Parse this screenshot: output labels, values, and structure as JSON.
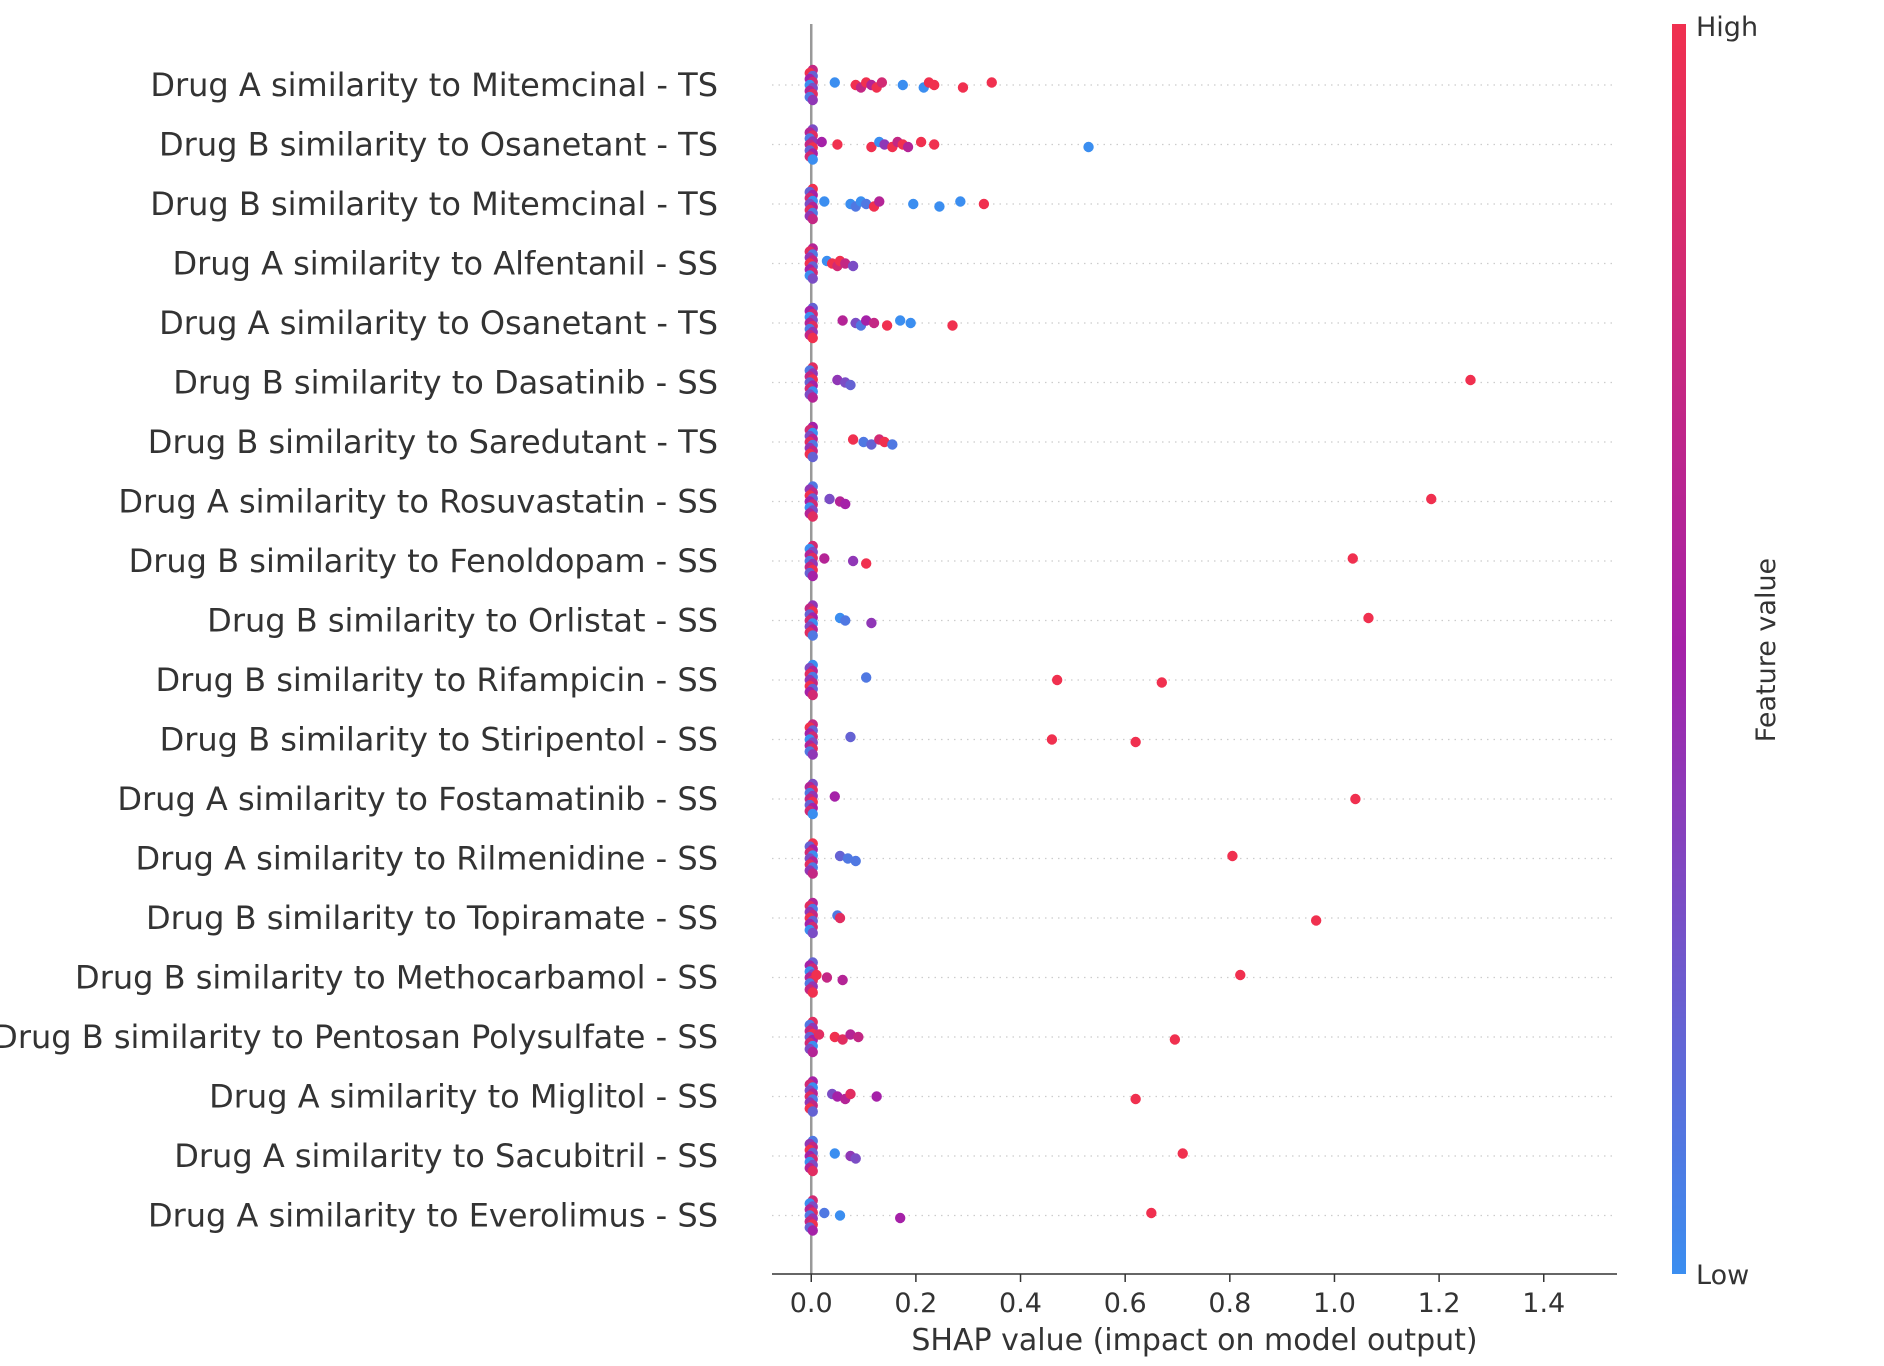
{
  "chart_data": {
    "type": "scatter",
    "title": "",
    "xlabel": "SHAP value (impact on model output)",
    "ylabel": "",
    "xlim": [
      -0.075,
      1.54
    ],
    "xticks": [
      0.0,
      0.2,
      0.4,
      0.6,
      0.8,
      1.0,
      1.2,
      1.4
    ],
    "xtick_labels": [
      "0.0",
      "0.2",
      "0.4",
      "0.6",
      "0.8",
      "1.0",
      "1.2",
      "1.4"
    ],
    "grid": false,
    "colorbar": {
      "label": "Feature value",
      "high": "High",
      "low": "Low",
      "low_color": "#3b8ef0",
      "high_color": "#f0304f"
    },
    "features": [
      {
        "name": "Drug A similarity to Mitemcinal - TS",
        "points": [
          [
            0.045,
            0
          ],
          [
            0.085,
            1
          ],
          [
            0.095,
            0.7
          ],
          [
            0.105,
            1
          ],
          [
            0.115,
            0.6
          ],
          [
            0.125,
            1
          ],
          [
            0.135,
            0.8
          ],
          [
            0.175,
            0
          ],
          [
            0.215,
            0
          ],
          [
            0.225,
            1
          ],
          [
            0.235,
            1
          ],
          [
            0.29,
            1
          ],
          [
            0.345,
            1
          ]
        ]
      },
      {
        "name": "Drug B similarity to Osanetant - TS",
        "points": [
          [
            0.02,
            0.5
          ],
          [
            0.05,
            1
          ],
          [
            0.115,
            1
          ],
          [
            0.13,
            0
          ],
          [
            0.14,
            0.4
          ],
          [
            0.155,
            1
          ],
          [
            0.165,
            0.7
          ],
          [
            0.175,
            1
          ],
          [
            0.185,
            0.6
          ],
          [
            0.21,
            1
          ],
          [
            0.235,
            1
          ],
          [
            0.53,
            0
          ]
        ]
      },
      {
        "name": "Drug B similarity to Mitemcinal - TS",
        "points": [
          [
            0.025,
            0
          ],
          [
            0.075,
            0
          ],
          [
            0.085,
            0.1
          ],
          [
            0.095,
            0
          ],
          [
            0.105,
            0.1
          ],
          [
            0.12,
            1
          ],
          [
            0.13,
            0.6
          ],
          [
            0.195,
            0
          ],
          [
            0.245,
            0
          ],
          [
            0.285,
            0
          ],
          [
            0.33,
            1
          ]
        ]
      },
      {
        "name": "Drug A similarity to Alfentanil - SS",
        "points": [
          [
            0.03,
            0
          ],
          [
            0.04,
            1
          ],
          [
            0.05,
            0.8
          ],
          [
            0.055,
            1
          ],
          [
            0.065,
            0.7
          ],
          [
            0.08,
            0.3
          ]
        ]
      },
      {
        "name": "Drug A similarity to Osanetant - TS",
        "points": [
          [
            0.06,
            0.6
          ],
          [
            0.085,
            0.3
          ],
          [
            0.095,
            0.1
          ],
          [
            0.105,
            0.5
          ],
          [
            0.12,
            0.7
          ],
          [
            0.145,
            1
          ],
          [
            0.17,
            0
          ],
          [
            0.19,
            0
          ],
          [
            0.27,
            1
          ]
        ]
      },
      {
        "name": "Drug B similarity to Dasatinib - SS",
        "points": [
          [
            0.05,
            0.4
          ],
          [
            0.065,
            0.3
          ],
          [
            0.075,
            0.2
          ],
          [
            1.26,
            1
          ]
        ]
      },
      {
        "name": "Drug B similarity to Saredutant - TS",
        "points": [
          [
            0.08,
            1
          ],
          [
            0.1,
            0.1
          ],
          [
            0.115,
            0.2
          ],
          [
            0.13,
            0.8
          ],
          [
            0.14,
            1
          ],
          [
            0.155,
            0.1
          ]
        ]
      },
      {
        "name": "Drug A similarity to Rosuvastatin - SS",
        "points": [
          [
            0.035,
            0.3
          ],
          [
            0.055,
            0.6
          ],
          [
            0.065,
            0.5
          ],
          [
            1.185,
            1
          ]
        ]
      },
      {
        "name": "Drug B similarity to Fenoldopam - SS",
        "points": [
          [
            0.025,
            0.6
          ],
          [
            0.08,
            0.4
          ],
          [
            0.105,
            1
          ],
          [
            1.035,
            1
          ]
        ]
      },
      {
        "name": "Drug B similarity to Orlistat - SS",
        "points": [
          [
            0.055,
            0
          ],
          [
            0.065,
            0.1
          ],
          [
            0.115,
            0.4
          ],
          [
            1.065,
            1
          ]
        ]
      },
      {
        "name": "Drug B similarity to Rifampicin - SS",
        "points": [
          [
            0.105,
            0.1
          ],
          [
            0.47,
            1
          ],
          [
            0.67,
            1
          ]
        ]
      },
      {
        "name": "Drug B similarity to Stiripentol - SS",
        "points": [
          [
            0.075,
            0.2
          ],
          [
            0.46,
            1
          ],
          [
            0.62,
            1
          ]
        ]
      },
      {
        "name": "Drug A similarity to Fostamatinib - SS",
        "points": [
          [
            0.045,
            0.5
          ],
          [
            1.04,
            1
          ]
        ]
      },
      {
        "name": "Drug A similarity to Rilmenidine - SS",
        "points": [
          [
            0.055,
            0.2
          ],
          [
            0.07,
            0.1
          ],
          [
            0.085,
            0.1
          ],
          [
            0.805,
            1
          ]
        ]
      },
      {
        "name": "Drug B similarity to Topiramate - SS",
        "points": [
          [
            0.05,
            0.1
          ],
          [
            0.055,
            0.9
          ],
          [
            0.965,
            1
          ]
        ]
      },
      {
        "name": "Drug B similarity to Methocarbamol - SS",
        "points": [
          [
            0.01,
            1
          ],
          [
            0.03,
            0.7
          ],
          [
            0.06,
            0.6
          ],
          [
            0.82,
            1
          ]
        ]
      },
      {
        "name": "Drug B similarity to Pentosan Polysulfate - SS",
        "points": [
          [
            0.015,
            0.9
          ],
          [
            0.045,
            1
          ],
          [
            0.06,
            0.9
          ],
          [
            0.075,
            0.6
          ],
          [
            0.09,
            0.7
          ],
          [
            0.695,
            1
          ]
        ]
      },
      {
        "name": "Drug A similarity to Miglitol - SS",
        "points": [
          [
            0.04,
            0.3
          ],
          [
            0.05,
            0.5
          ],
          [
            0.065,
            0.6
          ],
          [
            0.075,
            0.9
          ],
          [
            0.125,
            0.5
          ],
          [
            0.62,
            1
          ]
        ]
      },
      {
        "name": "Drug A similarity to Sacubitril - SS",
        "points": [
          [
            0.045,
            0
          ],
          [
            0.075,
            0.4
          ],
          [
            0.085,
            0.3
          ],
          [
            0.71,
            1
          ]
        ]
      },
      {
        "name": "Drug A similarity to Everolimus - SS",
        "points": [
          [
            0.025,
            0.1
          ],
          [
            0.055,
            0
          ],
          [
            0.17,
            0.5
          ],
          [
            0.65,
            1
          ]
        ]
      }
    ]
  }
}
